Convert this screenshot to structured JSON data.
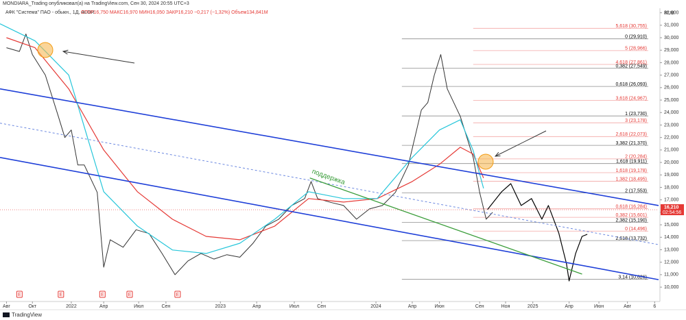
{
  "chart_data": {
    "type": "line",
    "publisher": "MONDIARA_Trading опубликовал(а) на TradingView.com, Сен 30, 2024 20:55 UTC+3",
    "title": "АФК \"Система\" ПАО - обыкн., 1Д, ALOR",
    "quote": "ОТКР16,750 МАКС16,970 МИН16,050 ЗАКР16,210 −0,217 (−1,32%) Объем134,841M",
    "currency": "RUB",
    "footer": "TradingView",
    "annotation": "поддержка",
    "grid": false,
    "xlim": [
      -0.5,
      50.3
    ],
    "ylim": [
      8850,
      32200
    ],
    "xticks": [
      {
        "value": 0,
        "label": "Авг"
      },
      {
        "value": 2,
        "label": "Окт"
      },
      {
        "value": 5,
        "label": "2022"
      },
      {
        "value": 7.5,
        "label": "Апр"
      },
      {
        "value": 10.2,
        "label": "Июл"
      },
      {
        "value": 12.3,
        "label": "Сен"
      },
      {
        "value": 16.5,
        "label": "2023"
      },
      {
        "value": 19.3,
        "label": "Апр"
      },
      {
        "value": 22.2,
        "label": "Июл"
      },
      {
        "value": 24.3,
        "label": "Сен"
      },
      {
        "value": 28.5,
        "label": "2024"
      },
      {
        "value": 31.3,
        "label": "Апр"
      },
      {
        "value": 33.4,
        "label": "Июн"
      },
      {
        "value": 36.5,
        "label": "Сен"
      },
      {
        "value": 38.5,
        "label": "Ноя"
      },
      {
        "value": 40.6,
        "label": "2025"
      },
      {
        "value": 43.4,
        "label": "Апр"
      },
      {
        "value": 45.7,
        "label": "Июн"
      },
      {
        "value": 47.9,
        "label": "Авг"
      },
      {
        "value": 50,
        "label": "6"
      }
    ],
    "yticks": [
      {
        "value": 10000,
        "label": "10,000"
      },
      {
        "value": 11000,
        "label": "11,000"
      },
      {
        "value": 12000,
        "label": "12,000"
      },
      {
        "value": 13000,
        "label": "13,000"
      },
      {
        "value": 14000,
        "label": "14,000"
      },
      {
        "value": 15000,
        "label": "15,000"
      },
      {
        "value": 16000,
        "label": "16,000"
      },
      {
        "value": 17000,
        "label": "17,000"
      },
      {
        "value": 18000,
        "label": "18,000"
      },
      {
        "value": 19000,
        "label": "19,000"
      },
      {
        "value": 20000,
        "label": "20,000"
      },
      {
        "value": 21000,
        "label": "21,000"
      },
      {
        "value": 22000,
        "label": "22,000"
      },
      {
        "value": 23000,
        "label": "23,000"
      },
      {
        "value": 24000,
        "label": "24,000"
      },
      {
        "value": 25000,
        "label": "25,000"
      },
      {
        "value": 26000,
        "label": "26,000"
      },
      {
        "value": 27000,
        "label": "27,000"
      },
      {
        "value": 28000,
        "label": "28,000"
      },
      {
        "value": 29000,
        "label": "29,000"
      },
      {
        "value": 30000,
        "label": "30,000"
      },
      {
        "value": 31000,
        "label": "31,000"
      },
      {
        "value": 32000,
        "label": "32,000"
      }
    ],
    "series": [
      {
        "color": "#333333",
        "width": 1,
        "x": [
          0,
          1,
          1.5,
          2,
          3,
          4,
          4.5,
          5,
          5.5,
          6,
          7,
          7.5,
          8,
          9,
          10,
          11,
          12,
          13,
          14,
          15,
          16,
          17,
          18,
          19,
          20,
          21,
          22,
          23,
          23.5,
          24,
          25,
          26,
          27,
          28,
          29,
          30,
          31,
          32,
          32.5,
          33,
          33.5,
          34,
          35,
          36,
          36.5,
          37,
          37.5
        ],
        "values": [
          29200,
          28900,
          30300,
          28650,
          27000,
          23700,
          22000,
          22600,
          19800,
          19800,
          17600,
          11600,
          13800,
          13200,
          14600,
          14300,
          12700,
          11000,
          12100,
          12700,
          12250,
          12600,
          12400,
          13500,
          14900,
          15450,
          16550,
          17100,
          18470,
          17100,
          16800,
          16550,
          15450,
          16270,
          16550,
          17600,
          19800,
          24200,
          24800,
          27000,
          28650,
          25900,
          23700,
          20400,
          17600,
          15450,
          16000
        ]
      },
      {
        "color": "#000000",
        "width": 1.2,
        "x": [
          37.1,
          38.2,
          38.9,
          39.7,
          40.5,
          41.3,
          41.8,
          42.6,
          43.2,
          43.4,
          43.9,
          44.4,
          44.8
        ],
        "values": [
          16220,
          17650,
          18300,
          16550,
          17100,
          15450,
          16550,
          14350,
          11870,
          10500,
          12700,
          14070,
          14240
        ]
      },
      {
        "color": "#e53935",
        "width": 1.2,
        "x": [
          0,
          2.2,
          4.8,
          7.5,
          10.1,
          12.8,
          15.4,
          18,
          20.7,
          23.3,
          26,
          28.6,
          31.3,
          33.4,
          35,
          36,
          36.8
        ],
        "values": [
          30000,
          29200,
          25900,
          21000,
          17650,
          15450,
          14070,
          13800,
          14900,
          17100,
          16820,
          17100,
          18470,
          19850,
          21220,
          20670,
          18750
        ]
      },
      {
        "color": "#26c6da",
        "width": 1.2,
        "x": [
          -0.5,
          2.2,
          4.8,
          7.5,
          10.1,
          12.8,
          15.4,
          18,
          20.7,
          23.3,
          26,
          28.6,
          31.3,
          33.4,
          35,
          36,
          36.8
        ],
        "values": [
          31120,
          29750,
          27000,
          17650,
          14900,
          12980,
          12700,
          13520,
          15450,
          17650,
          17100,
          17100,
          20400,
          22600,
          23420,
          20950,
          17920
        ]
      },
      {
        "color": "#1e3fd8",
        "width": 1.6,
        "x": [
          -0.5,
          50.3
        ],
        "values": [
          25900,
          16550
        ]
      },
      {
        "color": "#1e3fd8",
        "width": 1.6,
        "x": [
          -0.5,
          50.3
        ],
        "values": [
          20400,
          10600
        ]
      },
      {
        "color": "#6b88e0",
        "width": 1,
        "dash": true,
        "x": [
          -0.5,
          50.3
        ],
        "values": [
          23150,
          13410
        ]
      },
      {
        "color": "#3a9d3a",
        "width": 1.3,
        "x": [
          23.4,
          44.4
        ],
        "values": [
          18750,
          11050
        ]
      }
    ],
    "levels": [
      {
        "value": 30755,
        "label": "5,618 (30,755)",
        "color": "#e53935",
        "start": 36
      },
      {
        "value": 29910,
        "label": "0 (29,910)",
        "color": "#000000",
        "start": 30.5
      },
      {
        "value": 28966,
        "label": "5 (28,966)",
        "color": "#e53935",
        "start": 36
      },
      {
        "value": 27861,
        "label": "4,618 (27,861)",
        "color": "#e53935",
        "start": 36
      },
      {
        "value": 27549,
        "label": "0,382 (27,549)",
        "color": "#000000",
        "start": 30.5
      },
      {
        "value": 26093,
        "label": "0,618 (26,093)",
        "color": "#000000",
        "start": 30.5
      },
      {
        "value": 24967,
        "label": "3,618 (24,967)",
        "color": "#e53935",
        "start": 36
      },
      {
        "value": 23730,
        "label": "1 (23,730)",
        "color": "#000000",
        "start": 30.5
      },
      {
        "value": 23178,
        "label": "3 (23,178)",
        "color": "#e53935",
        "start": 36
      },
      {
        "value": 22073,
        "label": "2,618 (22,073)",
        "color": "#e53935",
        "start": 36
      },
      {
        "value": 21370,
        "label": "3,382 (21,370)",
        "color": "#000000",
        "start": 30.5
      },
      {
        "value": 20284,
        "label": "2 (20,284)",
        "color": "#e53935",
        "start": 36
      },
      {
        "value": 19911,
        "label": "1,618 (19,911)",
        "color": "#000000",
        "start": 30.5
      },
      {
        "value": 19178,
        "label": "1,618 (19,178)",
        "color": "#e53935",
        "start": 36
      },
      {
        "value": 18495,
        "label": "1,382 (18,495)",
        "color": "#e53935",
        "start": 36
      },
      {
        "value": 17553,
        "label": "2 (17,553)",
        "color": "#000000",
        "start": 30.5
      },
      {
        "value": 16284,
        "label": "0,618 (16,284)",
        "color": "#e53935",
        "start": 36
      },
      {
        "value": 15601,
        "label": "0,382 (15,601)",
        "color": "#e53935",
        "start": 36
      },
      {
        "value": 15190,
        "label": "2,382 (15,190)",
        "color": "#000000",
        "start": 30.5
      },
      {
        "value": 14496,
        "label": "0 (14,496)",
        "color": "#e53935",
        "start": 36
      },
      {
        "value": 13732,
        "label": "2,618 (13,732)",
        "color": "#000000",
        "start": 30.5
      },
      {
        "value": 10626,
        "label": "3,14 (10,626)",
        "color": "#000000",
        "start": 30.5
      }
    ],
    "last_price": {
      "value": 16210,
      "label": "16,210",
      "timer": "02:54:56",
      "color": "#e53935"
    },
    "events": [
      {
        "x": 1,
        "label": "E"
      },
      {
        "x": 4.2,
        "label": "E"
      },
      {
        "x": 7.4,
        "label": "E"
      },
      {
        "x": 9.5,
        "label": "E"
      },
      {
        "x": 13.2,
        "label": "E"
      }
    ]
  }
}
